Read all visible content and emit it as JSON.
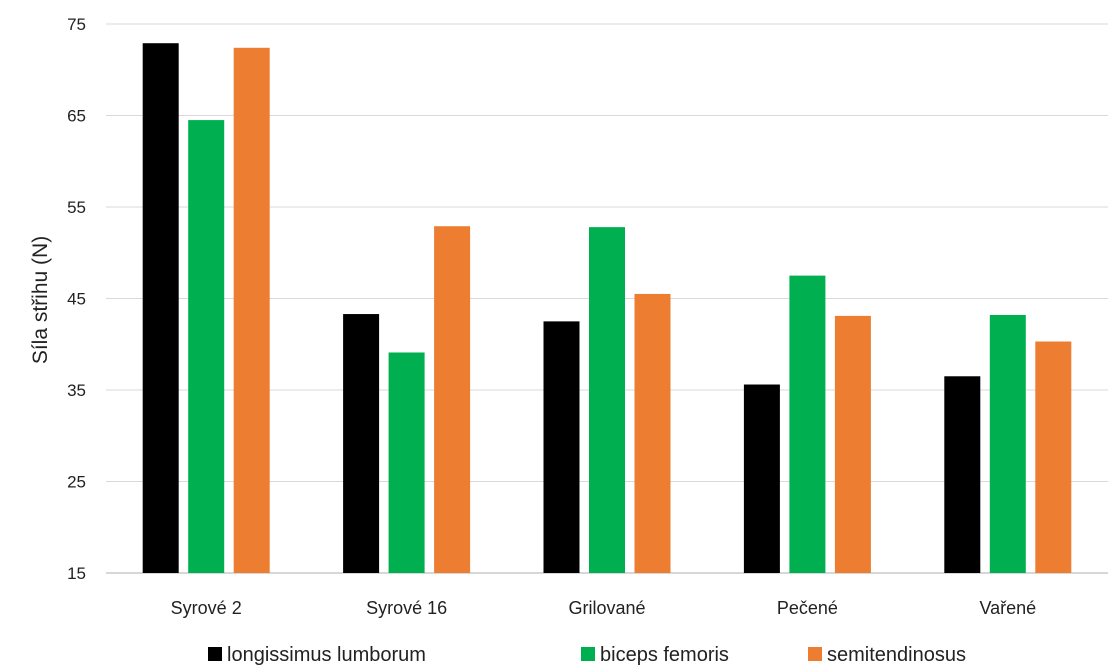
{
  "chart_data": {
    "type": "bar",
    "ylabel": "Síla střihu (N)",
    "xlabel": "",
    "ylim": [
      15,
      75
    ],
    "yticks": [
      15,
      25,
      35,
      45,
      55,
      65,
      75
    ],
    "grid": true,
    "legend_position": "bottom",
    "categories": [
      "Syrové 2",
      "Syrové 16",
      "Grilované",
      "Pečené",
      "Vařené"
    ],
    "series": [
      {
        "name": "longissimus lumborum",
        "color": "#000000",
        "values": [
          72.9,
          43.3,
          42.5,
          35.6,
          36.5
        ]
      },
      {
        "name": "biceps femoris",
        "color": "#00b050",
        "values": [
          64.5,
          39.1,
          52.8,
          47.5,
          43.2
        ]
      },
      {
        "name": "semitendinosus",
        "color": "#ed7d31",
        "values": [
          72.4,
          52.9,
          45.5,
          43.1,
          40.3
        ]
      }
    ]
  }
}
